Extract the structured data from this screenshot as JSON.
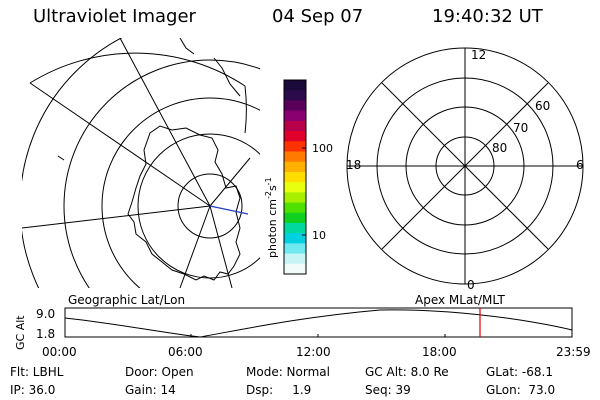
{
  "header": {
    "title": "Ultraviolet Imager",
    "date": "04 Sep 07",
    "time": "19:40:32 UT"
  },
  "colorbar": {
    "units": "photon cm",
    "exp1": "-2",
    "s_label": "s",
    "exp2": "-1",
    "ticks": [
      "100",
      "10"
    ],
    "colors": [
      "#1a0a3a",
      "#2a0a4a",
      "#5a005a",
      "#8a0070",
      "#b8004a",
      "#e0002a",
      "#ff3300",
      "#ff7a00",
      "#ffb000",
      "#ffdd00",
      "#e8ff10",
      "#a8f000",
      "#50e000",
      "#10d020",
      "#00d8a0",
      "#00d0e0",
      "#70e8f0",
      "#c8f4f6",
      "#f2fafa"
    ],
    "scale": "log"
  },
  "polar": {
    "mlt_labels": [
      "12",
      "18",
      "6",
      "0"
    ],
    "lat_labels": [
      "60",
      "70",
      "80"
    ]
  },
  "timeline": {
    "left_label": "Geographic Lat/Lon",
    "right_label": "Apex  MLat/MLT",
    "axis_label": "GC Alt",
    "y_ticks": [
      "9.0",
      "1.8"
    ],
    "x_ticks": [
      "00:00",
      "06:00",
      "12:00",
      "18:00",
      "23:59"
    ]
  },
  "status": {
    "filter": "Flt: LBHL",
    "door": "Door: Open",
    "mode": "Mode: Normal",
    "gc_alt": "GC Alt: 8.0 Re",
    "glat": "GLat: -68.1",
    "ip": "IP: 36.0",
    "gain": "Gain: 14",
    "dsp": "Dsp:     1.9",
    "seq": "Seq: 39",
    "glon": "GLon:  73.0"
  }
}
